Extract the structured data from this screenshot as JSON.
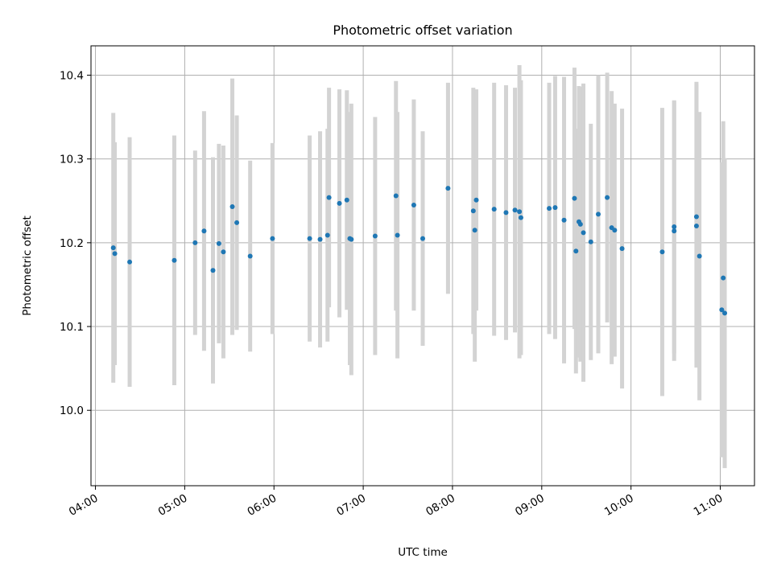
{
  "chart_data": {
    "type": "scatter",
    "title": "Photometric offset variation",
    "xlabel": "UTC time",
    "ylabel": "Photometric offset",
    "xlim": [
      "03:57",
      "11:23"
    ],
    "ylim": [
      9.91,
      10.435
    ],
    "x_ticks": [
      "04:00",
      "05:00",
      "06:00",
      "07:00",
      "08:00",
      "09:00",
      "10:00",
      "11:00"
    ],
    "y_ticks": [
      "10.0",
      "10.1",
      "10.2",
      "10.3",
      "10.4"
    ],
    "grid": true,
    "colors": {
      "point": "#1f77b4",
      "errorbar": "#d3d3d3",
      "grid": "#b0b0b0"
    },
    "series": [
      {
        "x": [
          "04:12",
          "04:13",
          "04:23",
          "04:53",
          "05:07",
          "05:13",
          "05:19",
          "05:23",
          "05:26",
          "05:32",
          "05:35",
          "05:44",
          "05:59",
          "06:24",
          "06:31",
          "06:36",
          "06:37",
          "06:44",
          "06:49",
          "06:51",
          "06:52",
          "07:08",
          "07:22",
          "07:23",
          "07:34",
          "07:40",
          "07:57",
          "08:14",
          "08:15",
          "08:16",
          "08:28",
          "08:36",
          "08:42",
          "08:45",
          "08:46",
          "09:05",
          "09:09",
          "09:15",
          "09:22",
          "09:23",
          "09:25",
          "09:26",
          "09:28",
          "09:33",
          "09:38",
          "09:44",
          "09:47",
          "09:49",
          "09:54",
          "10:21",
          "10:29",
          "10:29",
          "10:44",
          "10:44",
          "10:46",
          "11:01",
          "11:02",
          "11:03"
        ],
        "y": [
          10.194,
          10.187,
          10.177,
          10.179,
          10.2,
          10.214,
          10.167,
          10.199,
          10.189,
          10.243,
          10.224,
          10.184,
          10.205,
          10.205,
          10.204,
          10.209,
          10.254,
          10.247,
          10.251,
          10.205,
          10.204,
          10.208,
          10.256,
          10.209,
          10.245,
          10.205,
          10.265,
          10.238,
          10.215,
          10.251,
          10.24,
          10.236,
          10.239,
          10.237,
          10.23,
          10.241,
          10.242,
          10.227,
          10.253,
          10.19,
          10.225,
          10.222,
          10.212,
          10.201,
          10.234,
          10.254,
          10.218,
          10.215,
          10.193,
          10.189,
          10.219,
          10.214,
          10.231,
          10.22,
          10.184,
          10.12,
          10.158,
          10.116
        ],
        "yerr": [
          0.161,
          0.133,
          0.149,
          0.149,
          0.11,
          0.143,
          0.135,
          0.119,
          0.127,
          0.153,
          0.128,
          0.114,
          0.114,
          0.123,
          0.129,
          0.127,
          0.131,
          0.136,
          0.131,
          0.151,
          0.162,
          0.142,
          0.137,
          0.147,
          0.126,
          0.128,
          0.126,
          0.147,
          0.157,
          0.132,
          0.151,
          0.152,
          0.146,
          0.175,
          0.164,
          0.15,
          0.157,
          0.171,
          0.156,
          0.146,
          0.162,
          0.164,
          0.178,
          0.141,
          0.166,
          0.149,
          0.163,
          0.151,
          0.167,
          0.172,
          0.151,
          0.155,
          0.161,
          0.169,
          0.172,
          0.176,
          0.187,
          0.185
        ]
      }
    ]
  }
}
